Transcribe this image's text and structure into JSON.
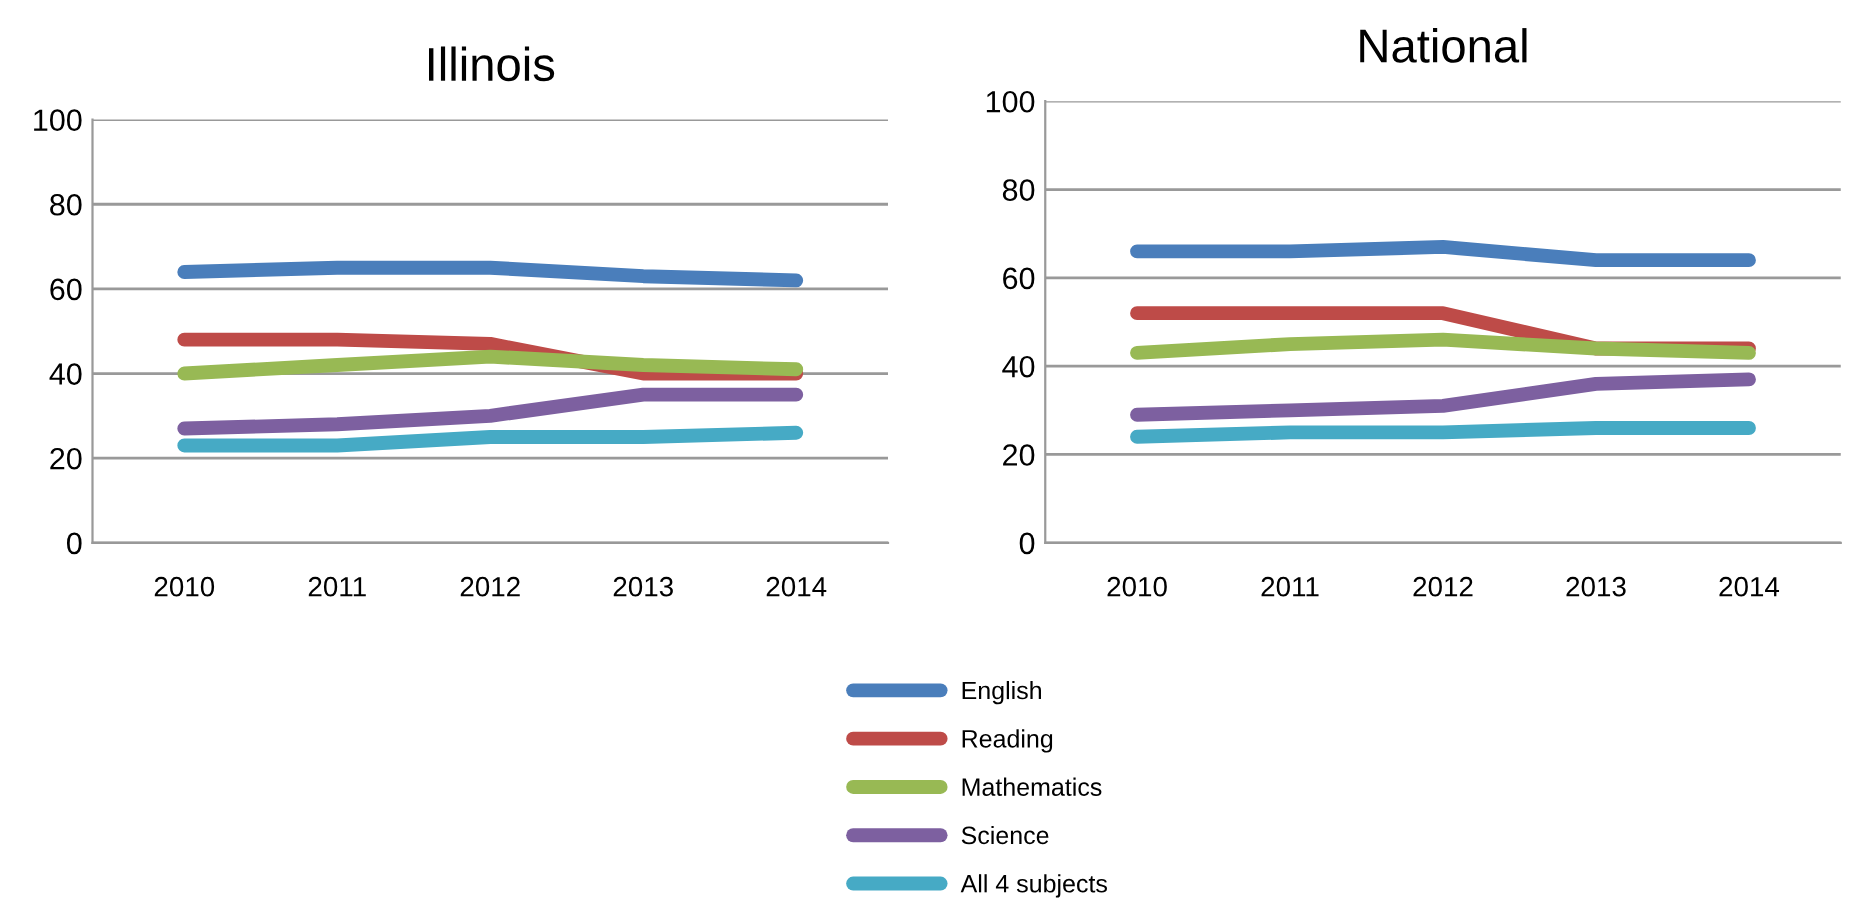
{
  "chart_data": [
    {
      "type": "line",
      "title": "Illinois",
      "categories": [
        "2010",
        "2011",
        "2012",
        "2013",
        "2014"
      ],
      "ylim": [
        0,
        100
      ],
      "yticks": [
        0,
        20,
        40,
        60,
        80,
        100
      ],
      "grid": "y",
      "legend": "bottom",
      "line_style": "solid",
      "series": [
        {
          "name": "English",
          "color": "#4a7ebb",
          "values": [
            64,
            65,
            65,
            63,
            62
          ]
        },
        {
          "name": "Reading",
          "color": "#be4b48",
          "values": [
            48,
            48,
            47,
            40,
            40
          ]
        },
        {
          "name": "Mathematics",
          "color": "#98b954",
          "values": [
            40,
            42,
            44,
            42,
            41
          ]
        },
        {
          "name": "Science",
          "color": "#7d60a0",
          "values": [
            27,
            28,
            30,
            35,
            35
          ]
        },
        {
          "name": "All 4 subjects",
          "color": "#46aac5",
          "values": [
            23,
            23,
            25,
            25,
            26
          ]
        }
      ]
    },
    {
      "type": "line",
      "title": "National",
      "categories": [
        "2010",
        "2011",
        "2012",
        "2013",
        "2014"
      ],
      "ylim": [
        0,
        100
      ],
      "yticks": [
        0,
        20,
        40,
        60,
        80,
        100
      ],
      "grid": "y",
      "line_style": "solid",
      "series": [
        {
          "color": "#4a7ebb",
          "values": [
            66,
            66,
            67,
            64,
            64
          ]
        },
        {
          "color": "#be4b48",
          "values": [
            52,
            52,
            52,
            44,
            44
          ]
        },
        {
          "color": "#98b954",
          "values": [
            43,
            45,
            46,
            44,
            43
          ]
        },
        {
          "color": "#7d60a0",
          "values": [
            29,
            30,
            31,
            36,
            37
          ]
        },
        {
          "color": "#46aac5",
          "values": [
            24,
            25,
            25,
            26,
            26
          ]
        }
      ]
    }
  ]
}
